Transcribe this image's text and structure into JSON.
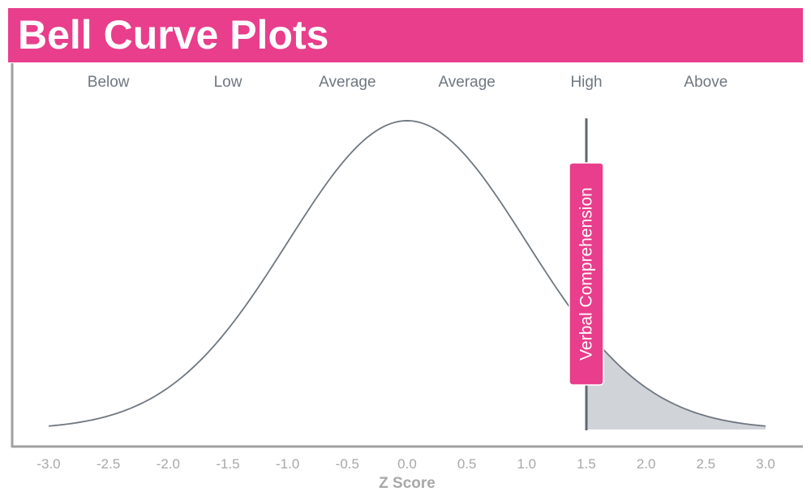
{
  "title": "Bell Curve Plots",
  "chart_data": {
    "type": "area",
    "curve": "standard normal density",
    "x": [
      -3.0,
      -2.5,
      -2.0,
      -1.5,
      -1.0,
      -0.5,
      0.0,
      0.5,
      1.0,
      1.5,
      2.0,
      2.5,
      3.0
    ],
    "y": [
      0.0044,
      0.0175,
      0.054,
      0.1295,
      0.242,
      0.3521,
      0.3989,
      0.3521,
      0.242,
      0.1295,
      0.054,
      0.0175,
      0.0044
    ],
    "xlabel": "Z Score",
    "xlim": [
      -3.0,
      3.0
    ],
    "xticks": [
      "-3.0",
      "-2.5",
      "-2.0",
      "-1.5",
      "-1.0",
      "-0.5",
      "0.0",
      "0.5",
      "1.0",
      "1.5",
      "2.0",
      "2.5",
      "3.0"
    ],
    "ylim": [
      0,
      0.42
    ],
    "range_labels": [
      {
        "label": "Below",
        "x": -2.5
      },
      {
        "label": "Low",
        "x": -1.5
      },
      {
        "label": "Average",
        "x": -0.5
      },
      {
        "label": "Average",
        "x": 0.5
      },
      {
        "label": "High",
        "x": 1.5
      },
      {
        "label": "Above",
        "x": 2.5
      }
    ],
    "marker": {
      "label": "Verbal Comprehension",
      "z": 1.5
    },
    "shaded_region": {
      "from": 1.5,
      "to": 3.0
    },
    "colors": {
      "accent": "#e83e8c",
      "curve": "#6e7780",
      "shade": "#d0d4d9",
      "axis": "#a0a0a0",
      "text": "#6e7780"
    }
  }
}
